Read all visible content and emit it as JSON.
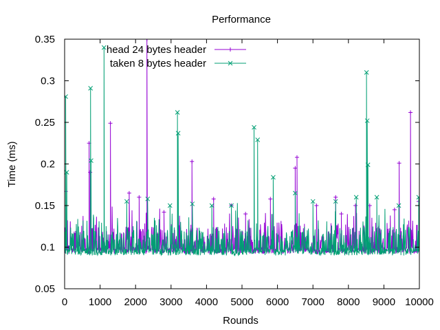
{
  "chart_data": {
    "type": "line",
    "title": "Performance",
    "xlabel": "Rounds",
    "ylabel": "Time (ms)",
    "xlim": [
      0,
      10000
    ],
    "ylim": [
      0.05,
      0.35
    ],
    "x_ticks": [
      "0",
      "1000",
      "2000",
      "3000",
      "4000",
      "5000",
      "6000",
      "7000",
      "8000",
      "9000",
      "10000"
    ],
    "y_ticks": [
      "0.05",
      "0.1",
      "0.15",
      "0.2",
      "0.25",
      "0.3",
      "0.35"
    ],
    "grid": false,
    "legend": "top-left",
    "series": [
      {
        "name": "head 24 bytes header",
        "color": "#9400d3",
        "marker": "plus",
        "baseline": 0.092,
        "peaks": [
          [
            30,
            0.167
          ],
          [
            690,
            0.225
          ],
          [
            720,
            0.19
          ],
          [
            1290,
            0.249
          ],
          [
            1820,
            0.165
          ],
          [
            2100,
            0.16
          ],
          [
            2320,
            0.35
          ],
          [
            2800,
            0.142
          ],
          [
            3590,
            0.203
          ],
          [
            4200,
            0.158
          ],
          [
            4700,
            0.15
          ],
          [
            5100,
            0.14
          ],
          [
            5800,
            0.158
          ],
          [
            6500,
            0.195
          ],
          [
            6550,
            0.208
          ],
          [
            7100,
            0.15
          ],
          [
            7640,
            0.16
          ],
          [
            7800,
            0.14
          ],
          [
            8200,
            0.15
          ],
          [
            8600,
            0.15
          ],
          [
            9300,
            0.145
          ],
          [
            9430,
            0.201
          ],
          [
            9750,
            0.262
          ],
          [
            9980,
            0.155
          ]
        ]
      },
      {
        "name": "taken 8 bytes header",
        "color": "#009e73",
        "marker": "cross",
        "baseline": 0.09,
        "peaks": [
          [
            30,
            0.281
          ],
          [
            60,
            0.19
          ],
          [
            730,
            0.291
          ],
          [
            745,
            0.204
          ],
          [
            1110,
            0.34
          ],
          [
            1750,
            0.155
          ],
          [
            2340,
            0.158
          ],
          [
            2970,
            0.15
          ],
          [
            3180,
            0.262
          ],
          [
            3200,
            0.237
          ],
          [
            3600,
            0.152
          ],
          [
            4150,
            0.15
          ],
          [
            4700,
            0.15
          ],
          [
            5340,
            0.244
          ],
          [
            5440,
            0.229
          ],
          [
            5880,
            0.184
          ],
          [
            6500,
            0.165
          ],
          [
            7000,
            0.155
          ],
          [
            7640,
            0.155
          ],
          [
            8220,
            0.16
          ],
          [
            8510,
            0.31
          ],
          [
            8530,
            0.252
          ],
          [
            8550,
            0.199
          ],
          [
            8800,
            0.16
          ],
          [
            9420,
            0.15
          ],
          [
            9980,
            0.16
          ]
        ]
      }
    ]
  }
}
